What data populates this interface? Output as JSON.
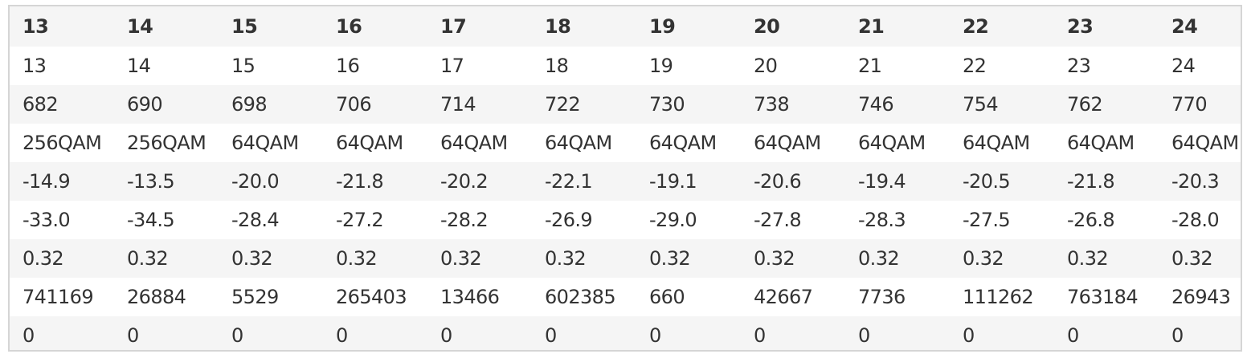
{
  "table": {
    "header": [
      "13",
      "14",
      "15",
      "16",
      "17",
      "18",
      "19",
      "20",
      "21",
      "22",
      "23",
      "24"
    ],
    "rows": [
      [
        "13",
        "14",
        "15",
        "16",
        "17",
        "18",
        "19",
        "20",
        "21",
        "22",
        "23",
        "24"
      ],
      [
        "682",
        "690",
        "698",
        "706",
        "714",
        "722",
        "730",
        "738",
        "746",
        "754",
        "762",
        "770"
      ],
      [
        "256QAM",
        "256QAM",
        "64QAM",
        "64QAM",
        "64QAM",
        "64QAM",
        "64QAM",
        "64QAM",
        "64QAM",
        "64QAM",
        "64QAM",
        "64QAM"
      ],
      [
        "-14.9",
        "-13.5",
        "-20.0",
        "-21.8",
        "-20.2",
        "-22.1",
        "-19.1",
        "-20.6",
        "-19.4",
        "-20.5",
        "-21.8",
        "-20.3"
      ],
      [
        "-33.0",
        "-34.5",
        "-28.4",
        "-27.2",
        "-28.2",
        "-26.9",
        "-29.0",
        "-27.8",
        "-28.3",
        "-27.5",
        "-26.8",
        "-28.0"
      ],
      [
        "0.32",
        "0.32",
        "0.32",
        "0.32",
        "0.32",
        "0.32",
        "0.32",
        "0.32",
        "0.32",
        "0.32",
        "0.32",
        "0.32"
      ],
      [
        "741169",
        "26884",
        "5529",
        "265403",
        "13466",
        "602385",
        "660",
        "42667",
        "7736",
        "111262",
        "763184",
        "26943"
      ],
      [
        "0",
        "0",
        "0",
        "0",
        "0",
        "0",
        "0",
        "0",
        "0",
        "0",
        "0",
        "0"
      ]
    ]
  }
}
